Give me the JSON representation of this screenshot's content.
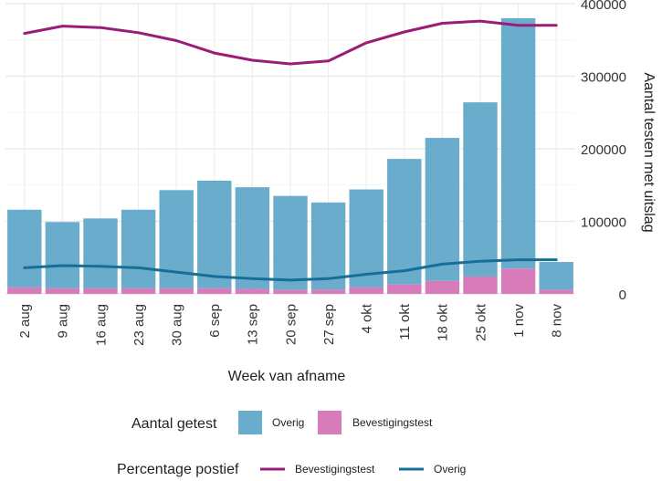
{
  "chart_data": {
    "type": "bar",
    "categories": [
      "2 aug",
      "9 aug",
      "16 aug",
      "23 aug",
      "30 aug",
      "6 sep",
      "13 sep",
      "20 sep",
      "27 sep",
      "4 okt",
      "11 okt",
      "18 okt",
      "25 okt",
      "1 nov",
      "8 nov"
    ],
    "xlabel": "Week van afname",
    "ylabel": "Aantal testen met uitslag",
    "y_ticks": [
      "0",
      "100000",
      "200000",
      "300000",
      "400000"
    ],
    "ylim": [
      0,
      400000
    ],
    "grid": true,
    "bar_series": [
      {
        "name": "Overig",
        "color": "#6aaccb",
        "values": [
          107000,
          91000,
          96000,
          108000,
          135000,
          148000,
          140000,
          129000,
          120000,
          135000,
          173000,
          197000,
          240000,
          345000,
          38000
        ]
      },
      {
        "name": "Bevestigingstest",
        "color": "#d77bbb",
        "values": [
          9000,
          8000,
          8000,
          8000,
          8000,
          8000,
          7000,
          6000,
          6000,
          9000,
          13000,
          18000,
          24000,
          35000,
          6000
        ]
      }
    ],
    "line_series": [
      {
        "name": "Bevestigingstest",
        "color": "#9c1b78",
        "values": [
          359000,
          369000,
          367000,
          360000,
          349000,
          332000,
          322000,
          317000,
          321000,
          346000,
          361000,
          373000,
          376000,
          370000,
          370000
        ]
      },
      {
        "name": "Overig",
        "color": "#176f98",
        "values": [
          36000,
          39000,
          38000,
          36000,
          30000,
          24000,
          21000,
          19000,
          21000,
          27000,
          32000,
          41000,
          45000,
          47000,
          47000
        ]
      }
    ],
    "legend_bars": {
      "title": "Aantal getest",
      "labels": [
        "Overig",
        "Bevestigingstest"
      ]
    },
    "legend_lines": {
      "title": "Percentage postief",
      "labels": [
        "Bevestigingstest",
        "Overig"
      ]
    },
    "legend_position": "bottom"
  }
}
